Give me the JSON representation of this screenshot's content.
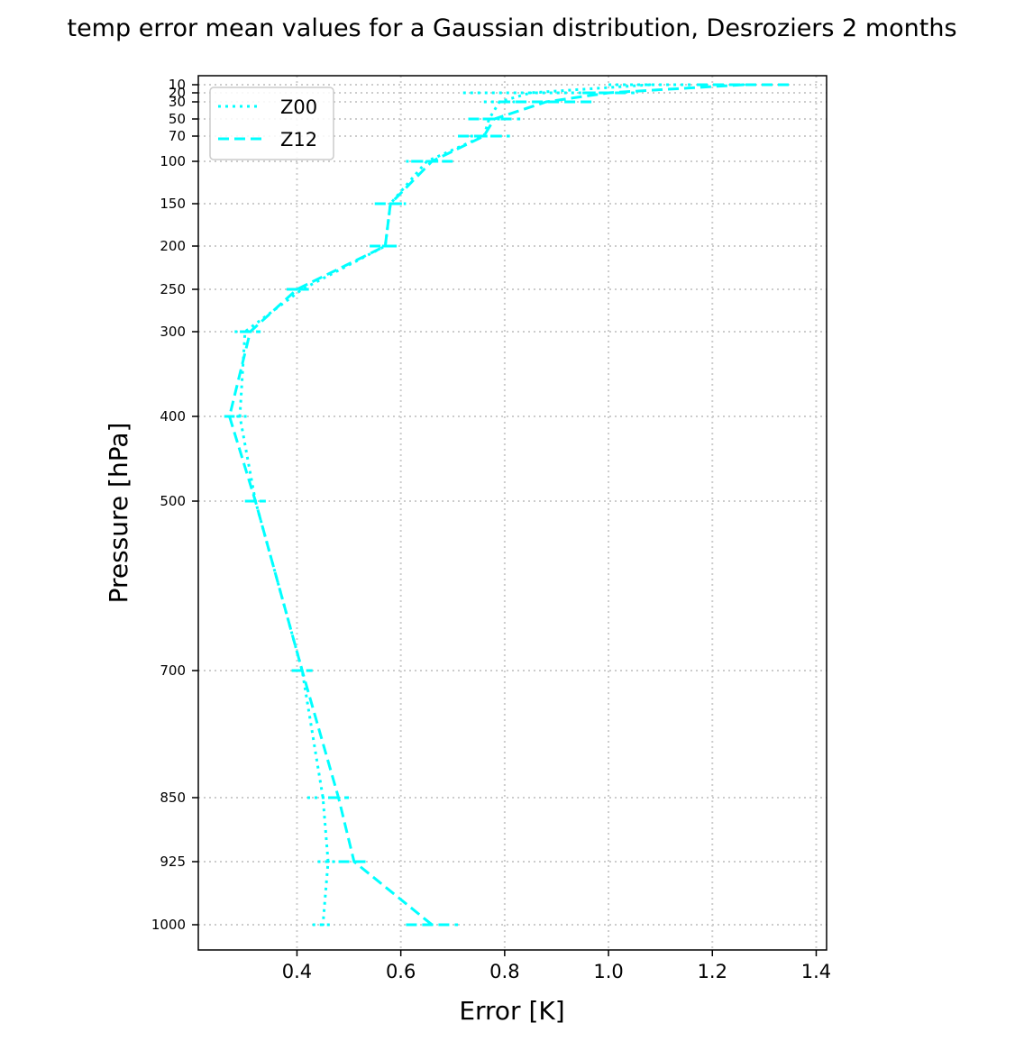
{
  "chart_data": {
    "type": "line",
    "title": "temp error mean values for a Gaussian distribution, Desroziers 2 months",
    "xlabel": "Error [K]",
    "ylabel": "Pressure [hPa]",
    "xlim": [
      0.21,
      1.42
    ],
    "ylim": [
      1055,
      1
    ],
    "xticks": [
      0.4,
      0.6,
      0.8,
      1.0,
      1.2,
      1.4
    ],
    "xtick_labels": [
      "0.4",
      "0.6",
      "0.8",
      "1.0",
      "1.2",
      "1.4"
    ],
    "yticks": [
      10,
      20,
      30,
      50,
      70,
      100,
      150,
      200,
      250,
      300,
      400,
      500,
      700,
      850,
      925,
      1000
    ],
    "ytick_labels": [
      "10",
      "20",
      "30",
      "50",
      "70",
      "100",
      "150",
      "200",
      "250",
      "300",
      "400",
      "500",
      "700",
      "850",
      "925",
      "1000"
    ],
    "grid": true,
    "legend_position": "top-left",
    "color": "#00ffff",
    "levels": [
      10,
      20,
      30,
      50,
      70,
      100,
      150,
      200,
      250,
      300,
      400,
      500,
      700,
      850,
      925,
      1000
    ],
    "series": [
      {
        "name": "Z00",
        "style": "dotted",
        "values": [
          1.08,
          0.85,
          0.79,
          0.77,
          0.76,
          0.65,
          0.58,
          0.57,
          0.41,
          0.3,
          0.29,
          0.32,
          0.41,
          0.45,
          0.46,
          0.45
        ],
        "errors": [
          0.08,
          0.13,
          0.03,
          0.04,
          0.04,
          0.04,
          0.03,
          0.02,
          0.02,
          0.02,
          0.02,
          0.02,
          0.02,
          0.03,
          0.02,
          0.02
        ]
      },
      {
        "name": "Z12",
        "style": "dashed",
        "values": [
          1.26,
          1.0,
          0.88,
          0.78,
          0.76,
          0.66,
          0.58,
          0.57,
          0.4,
          0.31,
          0.27,
          0.32,
          0.41,
          0.48,
          0.51,
          0.66
        ],
        "errors": [
          0.09,
          0.05,
          0.09,
          0.05,
          0.05,
          0.04,
          0.03,
          0.03,
          0.02,
          0.02,
          0.01,
          0.02,
          0.02,
          0.02,
          0.03,
          0.05
        ]
      }
    ]
  }
}
